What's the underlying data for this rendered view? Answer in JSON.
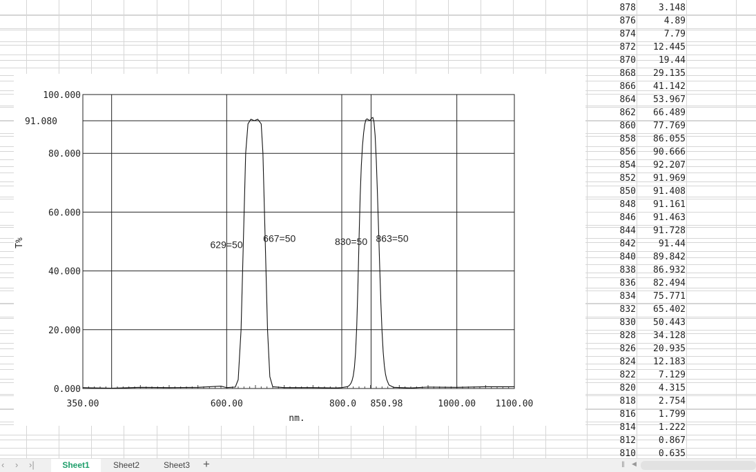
{
  "table": {
    "rows": [
      [
        "878",
        "3.148"
      ],
      [
        "876",
        "4.89"
      ],
      [
        "874",
        "7.79"
      ],
      [
        "872",
        "12.445"
      ],
      [
        "870",
        "19.44"
      ],
      [
        "868",
        "29.135"
      ],
      [
        "866",
        "41.142"
      ],
      [
        "864",
        "53.967"
      ],
      [
        "862",
        "66.489"
      ],
      [
        "860",
        "77.769"
      ],
      [
        "858",
        "86.055"
      ],
      [
        "856",
        "90.666"
      ],
      [
        "854",
        "92.207"
      ],
      [
        "852",
        "91.969"
      ],
      [
        "850",
        "91.408"
      ],
      [
        "848",
        "91.161"
      ],
      [
        "846",
        "91.463"
      ],
      [
        "844",
        "91.728"
      ],
      [
        "842",
        "91.44"
      ],
      [
        "840",
        "89.842"
      ],
      [
        "838",
        "86.932"
      ],
      [
        "836",
        "82.494"
      ],
      [
        "834",
        "75.771"
      ],
      [
        "832",
        "65.402"
      ],
      [
        "830",
        "50.443"
      ],
      [
        "828",
        "34.128"
      ],
      [
        "826",
        "20.935"
      ],
      [
        "824",
        "12.183"
      ],
      [
        "822",
        "7.129"
      ],
      [
        "820",
        "4.315"
      ],
      [
        "818",
        "2.754"
      ],
      [
        "816",
        "1.799"
      ],
      [
        "814",
        "1.222"
      ],
      [
        "812",
        "0.867"
      ],
      [
        "810",
        "0.635"
      ]
    ]
  },
  "sheet_tabs": [
    {
      "label": "Sheet1",
      "active": true
    },
    {
      "label": "Sheet2",
      "active": false
    },
    {
      "label": "Sheet3",
      "active": false
    }
  ],
  "sheet_tab_active_color": "#1e9e6a",
  "icons": {
    "first": "chevron-left-icon",
    "prev": "chevron-left-icon",
    "next": "chevron-right-icon",
    "last": "chevron-last-icon",
    "add": "plus-icon"
  },
  "chart_data": {
    "type": "line",
    "xlabel": "nm.",
    "ylabel": "T%",
    "xlim": [
      350,
      1100
    ],
    "ylim": [
      0,
      100
    ],
    "x_tick_labels": [
      "350.00",
      "600.00",
      "800.0",
      "850.98",
      "1000.00",
      "1100.00"
    ],
    "x_ticks": [
      350,
      600,
      800,
      850.98,
      1000,
      1100
    ],
    "y_tick_labels": [
      "0.000",
      "20.000",
      "40.000",
      "60.000",
      "80.000",
      "100.000"
    ],
    "y_ticks": [
      0,
      20,
      40,
      60,
      80,
      100
    ],
    "y_marker": {
      "label": "91.080",
      "value": 91.08
    },
    "x_gridlines": [
      400,
      600,
      800,
      850.98,
      1000
    ],
    "grid": true,
    "annotations": [
      {
        "text": "629=50",
        "x": 629,
        "y": 49
      },
      {
        "text": "667=50",
        "x": 667,
        "y": 51
      },
      {
        "text": "830=50",
        "x": 830,
        "y": 50
      },
      {
        "text": "863=50",
        "x": 863,
        "y": 51
      }
    ],
    "series": [
      {
        "points": [
          [
            350,
            0.3
          ],
          [
            400,
            0.1
          ],
          [
            450,
            0.4
          ],
          [
            500,
            0.3
          ],
          [
            550,
            0.4
          ],
          [
            590,
            0.8
          ],
          [
            600,
            0.3
          ],
          [
            615,
            0.5
          ],
          [
            620,
            3
          ],
          [
            625,
            20
          ],
          [
            629,
            50
          ],
          [
            633,
            80
          ],
          [
            637,
            90
          ],
          [
            642,
            91.6
          ],
          [
            648,
            91.1
          ],
          [
            654,
            91.6
          ],
          [
            660,
            90
          ],
          [
            663,
            80
          ],
          [
            667,
            50
          ],
          [
            671,
            20
          ],
          [
            675,
            4
          ],
          [
            680,
            0.6
          ],
          [
            700,
            0.3
          ],
          [
            750,
            0.3
          ],
          [
            790,
            0.2
          ],
          [
            800,
            0.3
          ],
          [
            810,
            0.635
          ],
          [
            812,
            0.867
          ],
          [
            814,
            1.222
          ],
          [
            816,
            1.799
          ],
          [
            818,
            2.754
          ],
          [
            820,
            4.315
          ],
          [
            822,
            7.129
          ],
          [
            824,
            12.183
          ],
          [
            826,
            20.935
          ],
          [
            828,
            34.128
          ],
          [
            830,
            50.443
          ],
          [
            832,
            65.402
          ],
          [
            834,
            75.771
          ],
          [
            836,
            82.494
          ],
          [
            838,
            86.932
          ],
          [
            840,
            89.842
          ],
          [
            842,
            91.44
          ],
          [
            844,
            91.728
          ],
          [
            846,
            91.463
          ],
          [
            848,
            91.161
          ],
          [
            850,
            91.408
          ],
          [
            852,
            91.969
          ],
          [
            854,
            92.207
          ],
          [
            856,
            90.666
          ],
          [
            858,
            86.055
          ],
          [
            860,
            77.769
          ],
          [
            862,
            66.489
          ],
          [
            864,
            53.967
          ],
          [
            866,
            41.142
          ],
          [
            868,
            29.135
          ],
          [
            870,
            19.44
          ],
          [
            872,
            12.445
          ],
          [
            874,
            7.79
          ],
          [
            876,
            4.89
          ],
          [
            878,
            3.148
          ],
          [
            882,
            1.2
          ],
          [
            890,
            0.4
          ],
          [
            920,
            0.2
          ],
          [
            950,
            0.5
          ],
          [
            1000,
            0.4
          ],
          [
            1050,
            0.6
          ],
          [
            1100,
            0.6
          ]
        ]
      }
    ]
  }
}
